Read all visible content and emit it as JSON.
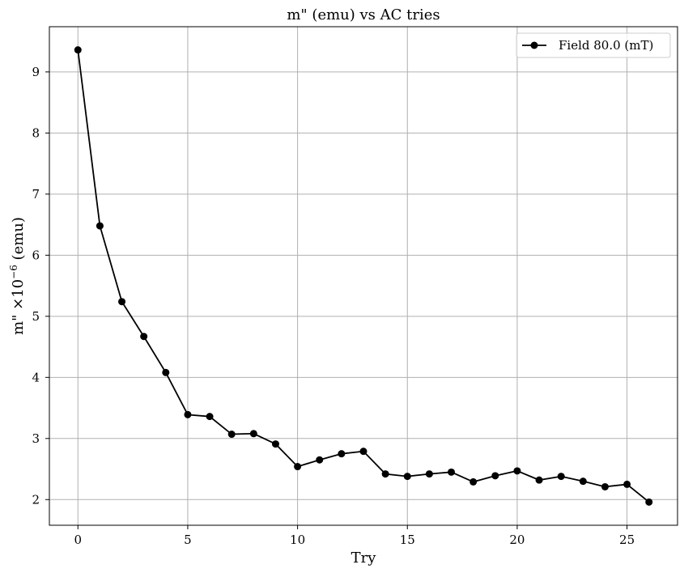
{
  "chart_data": {
    "type": "line",
    "title": "m\" (emu) vs  AC tries",
    "xlabel": "Try",
    "ylabel_main": "m\" ×10",
    "ylabel_exp": "−6",
    "ylabel_unit": " (emu)",
    "xlim": [
      -1.3,
      27.3
    ],
    "ylim": [
      1.58,
      9.74
    ],
    "xticks": [
      0,
      5,
      10,
      15,
      20,
      25
    ],
    "yticks": [
      2,
      3,
      4,
      5,
      6,
      7,
      8,
      9
    ],
    "grid": true,
    "legend_position": "top-right",
    "series": [
      {
        "name": "Field 80.0 (mT)",
        "color": "#000000",
        "marker": "circle",
        "x": [
          0,
          1,
          2,
          3,
          4,
          5,
          6,
          7,
          8,
          9,
          10,
          11,
          12,
          13,
          14,
          15,
          16,
          17,
          18,
          19,
          20,
          21,
          22,
          23,
          24,
          25,
          26
        ],
        "y": [
          9.36,
          6.48,
          5.24,
          4.67,
          4.08,
          3.39,
          3.36,
          3.07,
          3.08,
          2.91,
          2.54,
          2.65,
          2.75,
          2.79,
          2.42,
          2.38,
          2.42,
          2.45,
          2.29,
          2.39,
          2.47,
          2.32,
          2.38,
          2.3,
          2.21,
          2.25,
          1.96
        ]
      }
    ]
  }
}
